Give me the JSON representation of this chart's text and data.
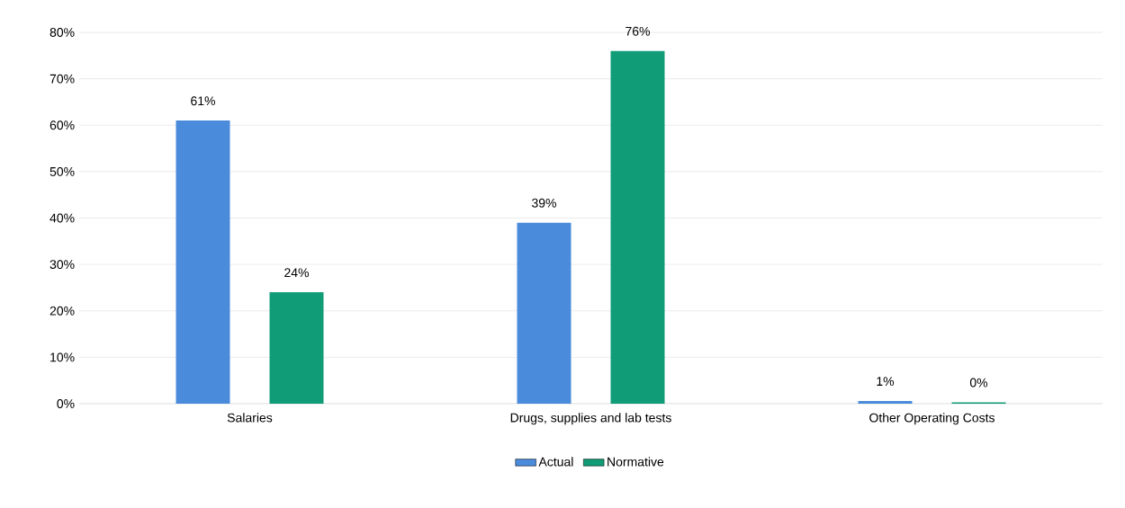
{
  "chart_data": {
    "type": "bar",
    "categories": [
      "Salaries",
      "Drugs, supplies and lab tests",
      "Other Operating Costs"
    ],
    "series": [
      {
        "name": "Actual",
        "color": "#4a8bdb",
        "values": [
          61,
          39,
          0.6
        ],
        "value_labels": [
          "61%",
          "39%",
          "1%"
        ]
      },
      {
        "name": "Normative",
        "color": "#109c76",
        "values": [
          24,
          76,
          0.3
        ],
        "value_labels": [
          "24%",
          "76%",
          "0%"
        ]
      }
    ],
    "ylim": [
      0,
      80
    ],
    "yticks": [
      {
        "value": 0,
        "label": "0%"
      },
      {
        "value": 10,
        "label": "10%"
      },
      {
        "value": 20,
        "label": "20%"
      },
      {
        "value": 30,
        "label": "30%"
      },
      {
        "value": 40,
        "label": "40%"
      },
      {
        "value": 50,
        "label": "50%"
      },
      {
        "value": 60,
        "label": "60%"
      },
      {
        "value": 70,
        "label": "70%"
      },
      {
        "value": 80,
        "label": "80%"
      }
    ],
    "grid": "y",
    "legend": "bottom"
  }
}
